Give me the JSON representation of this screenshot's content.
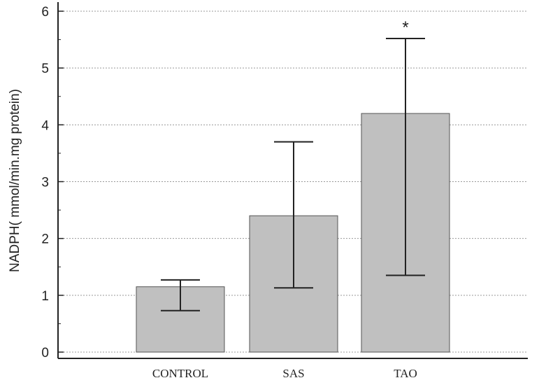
{
  "chart_data": {
    "type": "bar",
    "categories": [
      "CONTROL",
      "SAS",
      "TAO"
    ],
    "values": [
      1.15,
      2.4,
      4.2
    ],
    "error_low": [
      0.73,
      1.13,
      1.35
    ],
    "error_high": [
      1.27,
      3.7,
      5.52
    ],
    "annotations": [
      "",
      "",
      "*"
    ],
    "title": "",
    "xlabel": "",
    "ylabel": "NADPH( mmol/min.mg protein)",
    "ylim": [
      0,
      6.2
    ],
    "yticks": [
      0,
      1,
      2,
      3,
      4,
      5,
      6
    ],
    "grid": "horizontal dotted",
    "colors": {
      "bar_fill": "#c0c0c0",
      "bar_stroke": "#555555",
      "axis": "#222222",
      "grid": "#999999"
    }
  }
}
